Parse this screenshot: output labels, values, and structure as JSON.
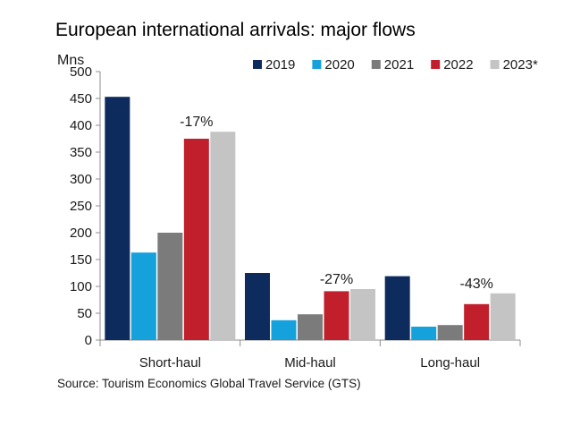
{
  "chart_data": {
    "type": "bar",
    "title": "European international arrivals: major flows",
    "ylabel": "Mns",
    "xlabel": "",
    "ylim": [
      0,
      500
    ],
    "yticks": [
      0,
      50,
      100,
      150,
      200,
      250,
      300,
      350,
      400,
      450,
      500
    ],
    "categories": [
      "Short-haul",
      "Mid-haul",
      "Long-haul"
    ],
    "series": [
      {
        "name": "2019",
        "color": "#0d2b5c",
        "values": [
          453,
          125,
          119
        ]
      },
      {
        "name": "2020",
        "color": "#14a1dc",
        "values": [
          163,
          37,
          25
        ]
      },
      {
        "name": "2021",
        "color": "#7b7b7b",
        "values": [
          200,
          48,
          28
        ]
      },
      {
        "name": "2022",
        "color": "#c21f2c",
        "values": [
          375,
          91,
          67
        ]
      },
      {
        "name": "2023*",
        "color": "#c4c4c4",
        "values": [
          388,
          95,
          87
        ]
      }
    ],
    "annotations": [
      "-17%",
      "-27%",
      "-43%"
    ],
    "legend_position": "top-right",
    "grid": false,
    "source": "Source: Tourism Economics Global Travel Service (GTS)"
  }
}
